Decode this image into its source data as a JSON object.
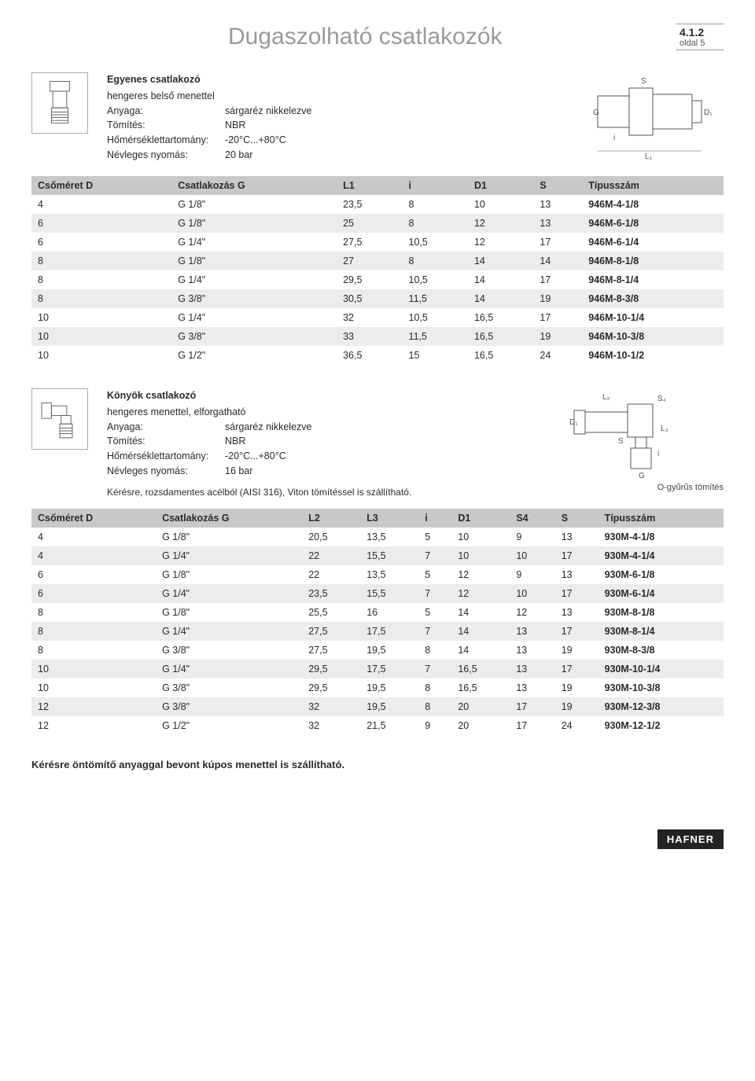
{
  "page": {
    "title": "Dugaszolható csatlakozók",
    "section_number": "4.1.2",
    "section_sub": "oldal 5"
  },
  "product1": {
    "title": "Egyenes csatlakozó",
    "subtitle": "hengeres belső menettel",
    "specs": {
      "material_label": "Anyaga:",
      "material_value": "sárgaréz nikkelezve",
      "seal_label": "Tömítés:",
      "seal_value": "NBR",
      "temp_label": "Hőmérséklettartomány:",
      "temp_value": "-20°C...+80°C",
      "pressure_label": "Névleges nyomás:",
      "pressure_value": "20 bar"
    },
    "columns": [
      "Csőméret D",
      "Csatlakozás G",
      "L1",
      "i",
      "D1",
      "S",
      "Típusszám"
    ],
    "rows": [
      [
        "4",
        "G 1/8\"",
        "23,5",
        "8",
        "10",
        "13",
        "946M-4-1/8"
      ],
      [
        "6",
        "G 1/8\"",
        "25",
        "8",
        "12",
        "13",
        "946M-6-1/8"
      ],
      [
        "6",
        "G 1/4\"",
        "27,5",
        "10,5",
        "12",
        "17",
        "946M-6-1/4"
      ],
      [
        "8",
        "G 1/8\"",
        "27",
        "8",
        "14",
        "14",
        "946M-8-1/8"
      ],
      [
        "8",
        "G 1/4\"",
        "29,5",
        "10,5",
        "14",
        "17",
        "946M-8-1/4"
      ],
      [
        "8",
        "G 3/8\"",
        "30,5",
        "11,5",
        "14",
        "19",
        "946M-8-3/8"
      ],
      [
        "10",
        "G 1/4\"",
        "32",
        "10,5",
        "16,5",
        "17",
        "946M-10-1/4"
      ],
      [
        "10",
        "G 3/8\"",
        "33",
        "11,5",
        "16,5",
        "19",
        "946M-10-3/8"
      ],
      [
        "10",
        "G 1/2\"",
        "36,5",
        "15",
        "16,5",
        "24",
        "946M-10-1/2"
      ]
    ]
  },
  "product2": {
    "title": "Könyök csatlakozó",
    "subtitle": "hengeres menettel, elforgatható",
    "specs": {
      "material_label": "Anyaga:",
      "material_value": "sárgaréz nikkelezve",
      "seal_label": "Tömítés:",
      "seal_value": "NBR",
      "temp_label": "Hőmérséklettartomány:",
      "temp_value": "-20°C...+80°C",
      "pressure_label": "Névleges nyomás:",
      "pressure_value": "16 bar"
    },
    "note": "Kérésre, rozsdamentes acélból (AISI 316), Viton tömítéssel is szállítható.",
    "oring_label": "O-gyűrűs tömítés",
    "columns": [
      "Csőméret D",
      "Csatlakozás G",
      "L2",
      "L3",
      "i",
      "D1",
      "S4",
      "S",
      "Típusszám"
    ],
    "rows": [
      [
        "4",
        "G 1/8\"",
        "20,5",
        "13,5",
        "5",
        "10",
        "9",
        "13",
        "930M-4-1/8"
      ],
      [
        "4",
        "G 1/4\"",
        "22",
        "15,5",
        "7",
        "10",
        "10",
        "17",
        "930M-4-1/4"
      ],
      [
        "6",
        "G 1/8\"",
        "22",
        "13,5",
        "5",
        "12",
        "9",
        "13",
        "930M-6-1/8"
      ],
      [
        "6",
        "G 1/4\"",
        "23,5",
        "15,5",
        "7",
        "12",
        "10",
        "17",
        "930M-6-1/4"
      ],
      [
        "8",
        "G 1/8\"",
        "25,5",
        "16",
        "5",
        "14",
        "12",
        "13",
        "930M-8-1/8"
      ],
      [
        "8",
        "G 1/4\"",
        "27,5",
        "17,5",
        "7",
        "14",
        "13",
        "17",
        "930M-8-1/4"
      ],
      [
        "8",
        "G 3/8\"",
        "27,5",
        "19,5",
        "8",
        "14",
        "13",
        "19",
        "930M-8-3/8"
      ],
      [
        "10",
        "G 1/4\"",
        "29,5",
        "17,5",
        "7",
        "16,5",
        "13",
        "17",
        "930M-10-1/4"
      ],
      [
        "10",
        "G 3/8\"",
        "29,5",
        "19,5",
        "8",
        "16,5",
        "13",
        "19",
        "930M-10-3/8"
      ],
      [
        "12",
        "G 3/8\"",
        "32",
        "19,5",
        "8",
        "20",
        "17",
        "19",
        "930M-12-3/8"
      ],
      [
        "12",
        "G 1/2\"",
        "32",
        "21,5",
        "9",
        "20",
        "17",
        "24",
        "930M-12-1/2"
      ]
    ]
  },
  "footnote": "Kérésre öntömítő anyaggal bevont kúpos menettel is szállítható.",
  "footer_logo": "HAFNER",
  "colors": {
    "title_gray": "#9a9a9a",
    "header_bg": "#c8c8c8",
    "row_alt": "#ececec",
    "text": "#2a2a2a"
  }
}
